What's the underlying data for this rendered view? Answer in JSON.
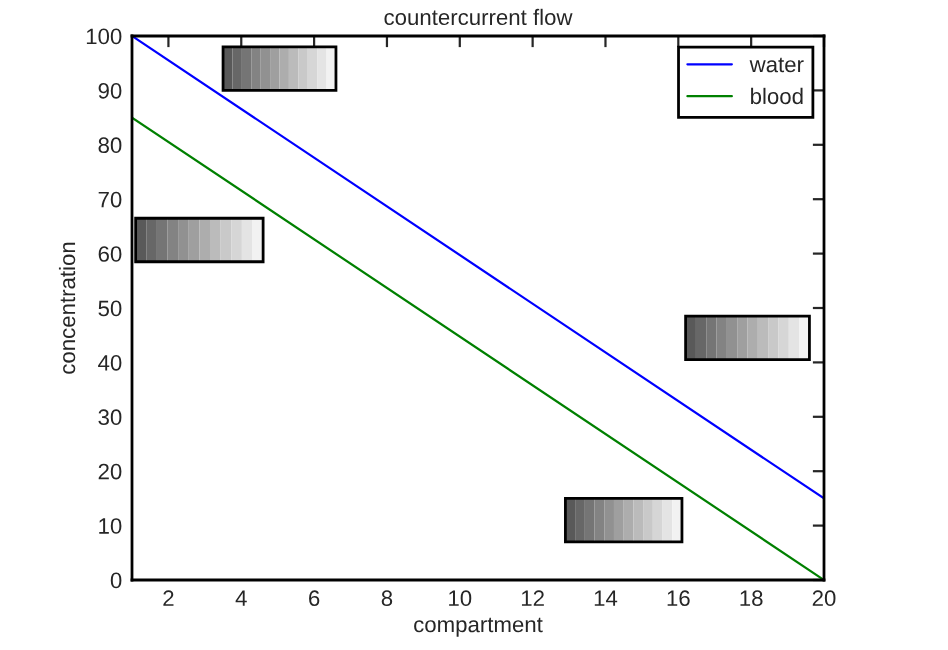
{
  "chart_data": {
    "type": "line",
    "title": "countercurrent flow",
    "xlabel": "compartment",
    "ylabel": "concentration",
    "x": [
      1,
      20
    ],
    "series": [
      {
        "name": "water",
        "color": "#0000ff",
        "values": [
          100,
          15
        ]
      },
      {
        "name": "blood",
        "color": "#008000",
        "values": [
          85,
          0
        ]
      }
    ],
    "xlim": [
      1,
      20
    ],
    "xticks": [
      2,
      4,
      6,
      8,
      10,
      12,
      14,
      16,
      18,
      20
    ],
    "ylim": [
      0,
      100
    ],
    "yticks": [
      0,
      10,
      20,
      30,
      40,
      50,
      60,
      70,
      80,
      90,
      100
    ],
    "legend": "top right",
    "grid": false,
    "marker": "none",
    "line_style": "solid"
  }
}
